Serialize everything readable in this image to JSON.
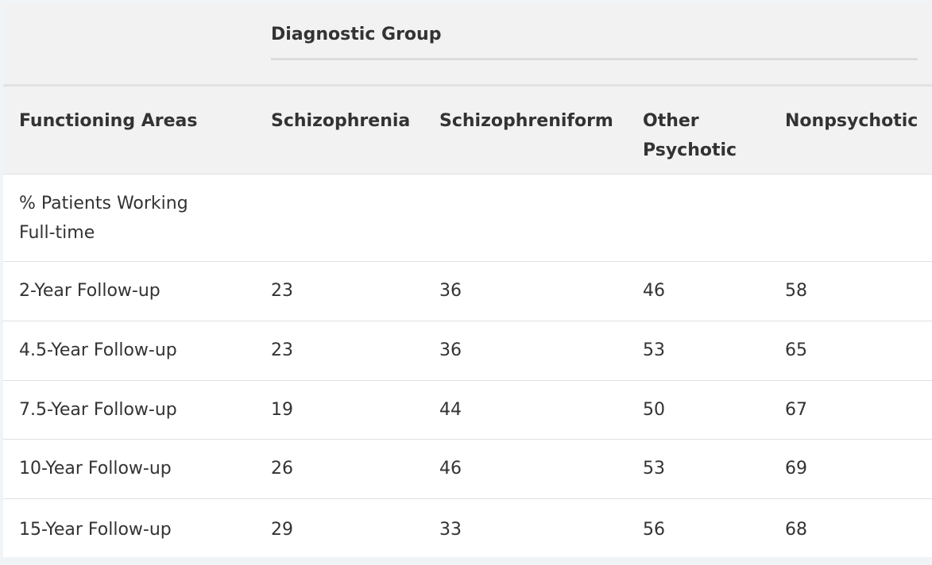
{
  "table": {
    "group_header": "Diagnostic Group",
    "columns": [
      "Functioning Areas",
      "Schizophrenia",
      "Schizophreniform",
      "Other Psychotic",
      "Nonpsychotic"
    ],
    "section_label": "% Patients Working Full-time",
    "rows": [
      {
        "label": "2-Year Follow-up",
        "values": [
          "23",
          "36",
          "46",
          "58"
        ]
      },
      {
        "label": "4.5-Year Follow-up",
        "values": [
          "23",
          "36",
          "53",
          "65"
        ]
      },
      {
        "label": "7.5-Year Follow-up",
        "values": [
          "19",
          "44",
          "50",
          "67"
        ]
      },
      {
        "label": "10-Year Follow-up",
        "values": [
          "26",
          "46",
          "53",
          "69"
        ]
      },
      {
        "label": "15-Year Follow-up",
        "values": [
          "29",
          "33",
          "56",
          "68"
        ]
      }
    ]
  }
}
